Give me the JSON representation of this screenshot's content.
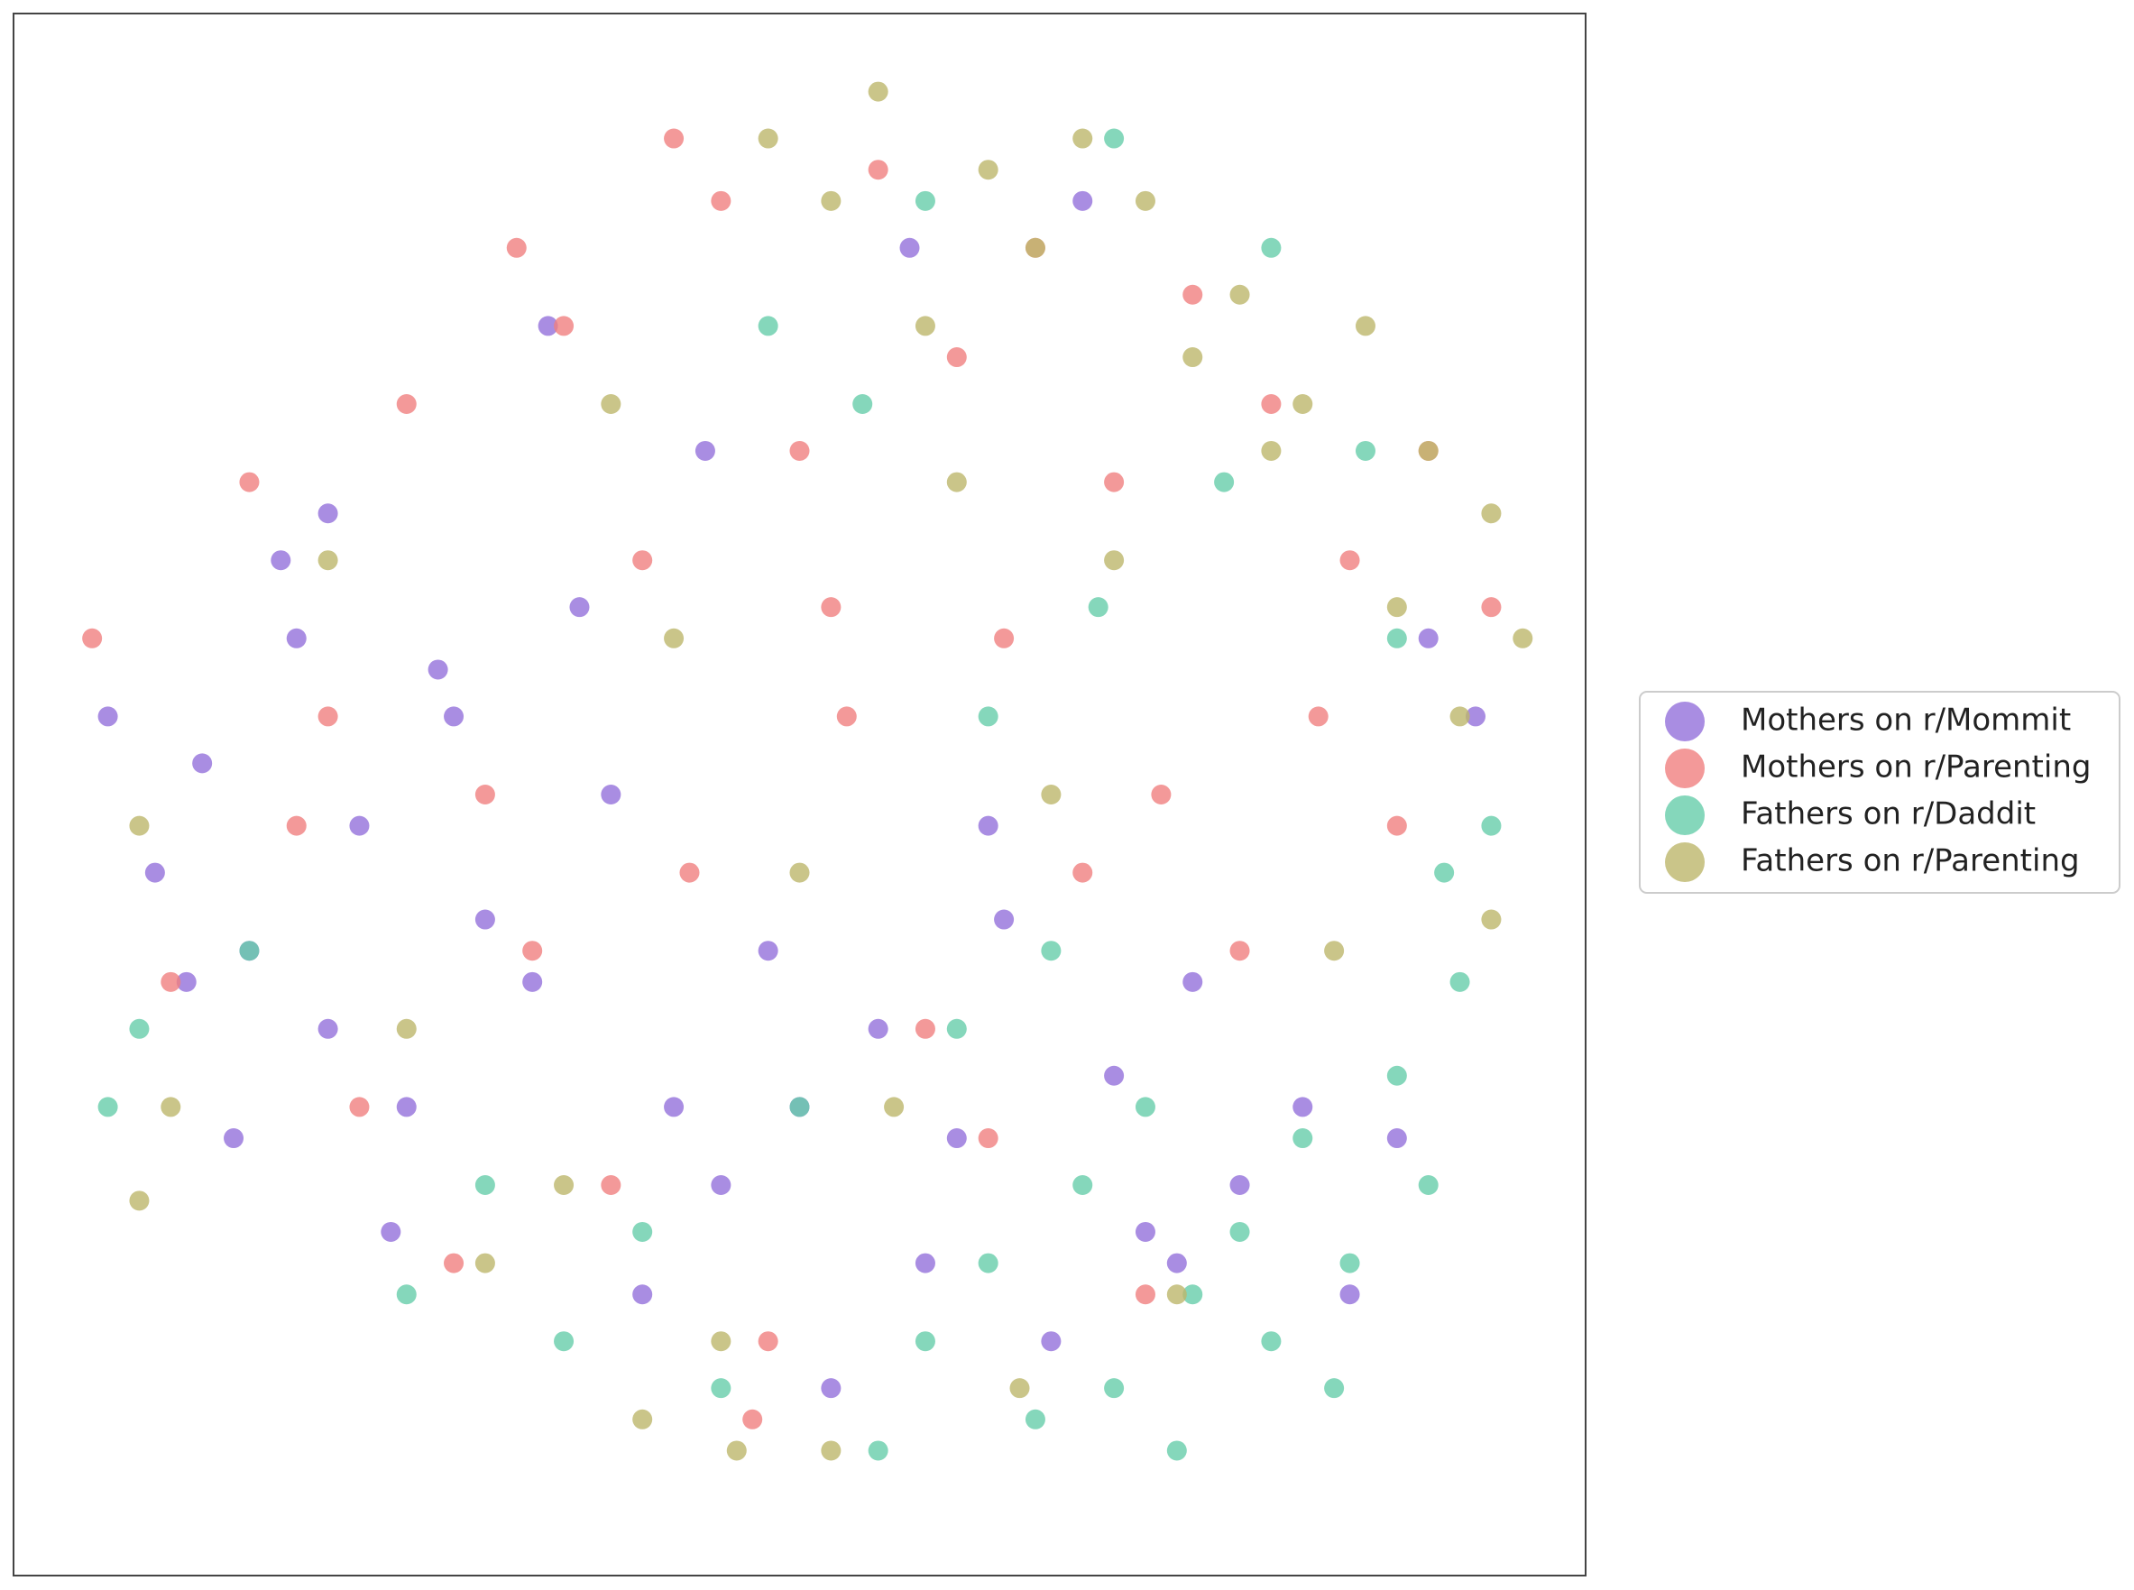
{
  "chart_data": {
    "type": "scatter",
    "xlim": [
      0,
      100
    ],
    "ylim": [
      0,
      100
    ],
    "legend": "right",
    "series": [
      {
        "name": "Mothers on r/Mommit",
        "color": "#9370db",
        "x": [
          6,
          9,
          12,
          15,
          18,
          20,
          22,
          25,
          28,
          30,
          14,
          17,
          24,
          33,
          36,
          40,
          42,
          45,
          48,
          52,
          55,
          58,
          60,
          63,
          66,
          70,
          72,
          75,
          78,
          82,
          85,
          88,
          90,
          93,
          11,
          27,
          38,
          50,
          62,
          74,
          44,
          34,
          20,
          57,
          68
        ],
        "y": [
          55,
          45,
          52,
          40,
          60,
          35,
          48,
          30,
          55,
          42,
          28,
          65,
          22,
          38,
          62,
          18,
          30,
          25,
          40,
          12,
          35,
          20,
          28,
          42,
          15,
          32,
          22,
          38,
          25,
          30,
          18,
          28,
          60,
          55,
          38,
          58,
          50,
          30,
          48,
          20,
          72,
          80,
          68,
          85,
          88
        ]
      },
      {
        "name": "Mothers on r/Parenting",
        "color": "#f08080",
        "x": [
          5,
          10,
          15,
          20,
          25,
          30,
          35,
          40,
          45,
          50,
          55,
          60,
          65,
          70,
          75,
          80,
          85,
          90,
          94,
          22,
          28,
          33,
          38,
          43,
          48,
          53,
          58,
          63,
          68,
          73,
          78,
          83,
          88,
          32,
          42,
          52,
          62,
          72,
          18,
          47
        ],
        "y": [
          60,
          38,
          70,
          55,
          75,
          50,
          80,
          65,
          88,
          72,
          90,
          78,
          85,
          70,
          82,
          75,
          65,
          72,
          62,
          30,
          20,
          40,
          25,
          45,
          15,
          55,
          35,
          60,
          45,
          50,
          40,
          55,
          48,
          85,
          92,
          62,
          28,
          18,
          48,
          10
        ]
      },
      {
        "name": "Fathers on r/Daddit",
        "color": "#66cdaa",
        "x": [
          55,
          58,
          62,
          65,
          68,
          70,
          72,
          75,
          78,
          80,
          82,
          85,
          88,
          90,
          92,
          60,
          66,
          74,
          84,
          91,
          50,
          45,
          40,
          35,
          30,
          25,
          15,
          8,
          6,
          62,
          69,
          77,
          86,
          94,
          58,
          48,
          54,
          70,
          80,
          88
        ],
        "y": [
          8,
          15,
          20,
          10,
          25,
          12,
          30,
          18,
          22,
          15,
          28,
          20,
          32,
          25,
          38,
          35,
          40,
          8,
          12,
          45,
          30,
          12,
          22,
          15,
          25,
          18,
          40,
          35,
          30,
          55,
          62,
          70,
          72,
          48,
          88,
          80,
          75,
          92,
          85,
          60
        ]
      },
      {
        "name": "Fathers on r/Parenting",
        "color": "#bdb76b",
        "x": [
          48,
          52,
          55,
          58,
          62,
          65,
          68,
          72,
          75,
          78,
          82,
          86,
          90,
          94,
          96,
          60,
          70,
          80,
          88,
          92,
          50,
          45,
          40,
          35,
          30,
          25,
          20,
          10,
          8,
          38,
          42,
          52,
          64,
          74,
          84,
          94,
          46,
          56,
          66,
          8
        ],
        "y": [
          92,
          88,
          95,
          80,
          90,
          85,
          92,
          88,
          78,
          82,
          75,
          80,
          72,
          68,
          60,
          70,
          65,
          72,
          62,
          55,
          45,
          15,
          10,
          25,
          20,
          35,
          65,
          30,
          48,
          75,
          60,
          8,
          12,
          18,
          40,
          42,
          8,
          30,
          50,
          24
        ]
      }
    ]
  }
}
